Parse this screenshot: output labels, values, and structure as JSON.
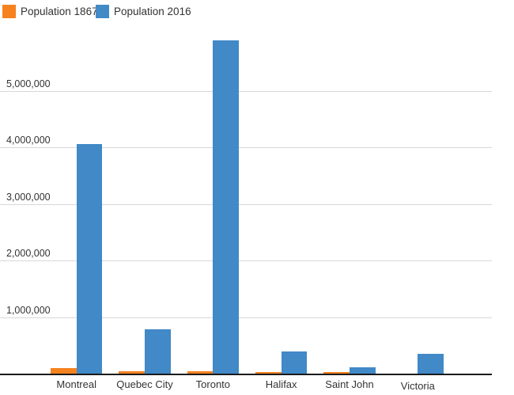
{
  "legend": {
    "items": [
      {
        "label": "Population 1867",
        "color": "#f5821f"
      },
      {
        "label": "Population 2016",
        "color": "#4189c7"
      }
    ]
  },
  "chart_data": {
    "type": "bar",
    "title": "",
    "xlabel": "",
    "ylabel": "",
    "grid": true,
    "legend_position": "top-left",
    "categories": [
      "Montreal",
      "Quebec City",
      "Toronto",
      "Halifax",
      "Saint John",
      "Victoria"
    ],
    "series": [
      {
        "name": "Population 1867",
        "color": "#f5821f",
        "values": [
          110000,
          60000,
          60000,
          45000,
          40000,
          5000
        ]
      },
      {
        "name": "Population 2016",
        "color": "#4189c7",
        "values": [
          4070000,
          790000,
          5900000,
          400000,
          130000,
          365000
        ]
      }
    ],
    "ylim": [
      0,
      6000000
    ],
    "yticks": [
      {
        "value": 1000000,
        "label": "1,000,000"
      },
      {
        "value": 2000000,
        "label": "2,000,000"
      },
      {
        "value": 3000000,
        "label": "3,000,000"
      },
      {
        "value": 4000000,
        "label": "4,000,000"
      },
      {
        "value": 5000000,
        "label": "5,000,000"
      }
    ]
  },
  "colors": {
    "grid": "#d8d8d8",
    "axis": "#1a1a1a",
    "text": "#333333",
    "background": "#ffffff"
  }
}
